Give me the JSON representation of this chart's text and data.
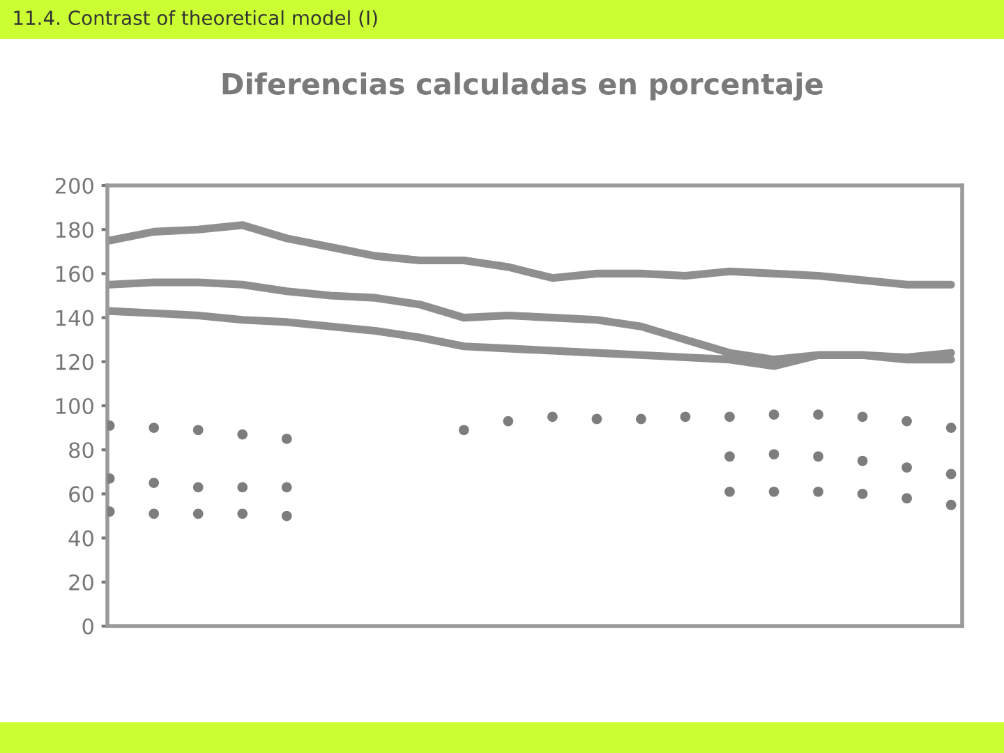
{
  "chart_data": {
    "type": "line",
    "title": "11.4. Contrast of theoretical model (I)",
    "subtitle": "Diferencias calculadas en porcentaje",
    "categories": [
      null,
      null,
      null,
      null,
      null,
      null,
      null,
      null,
      null,
      null,
      null,
      null,
      null,
      null,
      null,
      null,
      null,
      null,
      null,
      null
    ],
    "series": [
      {
        "color": "#8f8f8f",
        "values": [
          175,
          179,
          180,
          182,
          176,
          172,
          168,
          166,
          166,
          163,
          158,
          160,
          160,
          159,
          161,
          160,
          159,
          157,
          155,
          155
        ]
      },
      {
        "color": "#8f8f8f",
        "values": [
          155,
          156,
          156,
          155,
          152,
          150,
          149,
          146,
          140,
          141,
          140,
          139,
          136,
          130,
          124,
          121,
          123,
          123,
          122,
          124
        ]
      },
      {
        "color": "#8f8f8f",
        "values": [
          143,
          142,
          141,
          139,
          138,
          136,
          134,
          131,
          127,
          126,
          125,
          124,
          123,
          122,
          121,
          118,
          123,
          123,
          121,
          121
        ]
      },
      {
        "type": "scatter",
        "color": "#7d7d7d",
        "marker": "circle",
        "values": [
          91,
          90,
          89,
          87,
          85,
          null,
          null,
          null,
          89,
          93,
          95,
          94,
          94,
          95,
          95,
          96,
          96,
          95,
          93,
          90
        ]
      },
      {
        "type": "scatter",
        "color": "#7d7d7d",
        "marker": "circle",
        "values": [
          67,
          65,
          63,
          63,
          63,
          null,
          null,
          null,
          null,
          null,
          null,
          null,
          null,
          null,
          77,
          78,
          77,
          75,
          72,
          69
        ]
      },
      {
        "type": "scatter",
        "color": "#7d7d7d",
        "marker": "circle",
        "values": [
          52,
          51,
          51,
          51,
          50,
          null,
          null,
          null,
          null,
          null,
          null,
          null,
          null,
          null,
          61,
          61,
          61,
          60,
          58,
          55
        ]
      }
    ],
    "ylim": [
      0,
      200
    ],
    "yticks": [
      0,
      20,
      40,
      60,
      80,
      100,
      120,
      140,
      160,
      180,
      200
    ]
  }
}
